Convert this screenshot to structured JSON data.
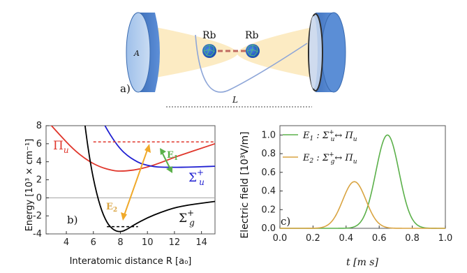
{
  "panel_a": {
    "label": "a)",
    "mirror_label": "A",
    "atom1_label": "Rb",
    "atom2_label": "Rb",
    "length_label": "L",
    "colors": {
      "mirror": "#5b8ed6",
      "mirror_dark": "#3a6bb0",
      "beam": "#fbe8b8",
      "atom": "#2a5fc4",
      "atom_mesh": "#53c07a",
      "bond": "#c06a60",
      "potential": "#8ea6d8"
    }
  },
  "panel_b": {
    "label": "b)",
    "ylabel": "Energy [10³ × cm⁻¹]",
    "xlabel": "Interatomic distance R [a₀]",
    "curve_labels": {
      "pi_u": "Πu",
      "sigma_u": "Σu+",
      "sigma_g": "Σg+",
      "e1": "E₁",
      "e2": "E₂"
    },
    "colors": {
      "pi_u": "#e0362b",
      "sigma_u": "#1f1fd1",
      "sigma_g": "#000000",
      "e1": "#5bb04a",
      "e2": "#f0a92a"
    }
  },
  "panel_c": {
    "label": "c)",
    "ylabel": "Electric field [10³V/m]",
    "xlabel": "t [m s]",
    "legend": [
      {
        "name": "E₁ : Σu+ ↔ Πu",
        "color": "#5bb04a"
      },
      {
        "name": "E₂ : Σg+ ↔ Πu",
        "color": "#d9a441"
      }
    ]
  },
  "chart_data": [
    {
      "type": "line",
      "title": "",
      "xlabel": "Interatomic distance R [a0]",
      "ylabel": "Energy [10^3 x cm^-1]",
      "xlim": [
        2.5,
        15
      ],
      "ylim": [
        -4,
        8
      ],
      "xticks": [
        4,
        6,
        8,
        10,
        12,
        14
      ],
      "yticks": [
        -4,
        -2,
        0,
        2,
        4,
        6,
        8
      ],
      "series": [
        {
          "name": "Πu",
          "x": [
            2.6,
            3.5,
            4.5,
            5.5,
            6.5,
            7.5,
            8.0,
            9.0,
            10.0,
            11.0,
            12.0,
            13.0,
            14.0,
            15.0
          ],
          "y": [
            8.5,
            7.0,
            5.4,
            4.2,
            3.4,
            3.0,
            2.95,
            3.05,
            3.4,
            3.9,
            4.5,
            5.0,
            5.5,
            6.0
          ]
        },
        {
          "name": "Σu+",
          "x": [
            6.5,
            7.0,
            7.5,
            8.0,
            8.5,
            9.0,
            9.5,
            10.0,
            10.5,
            11.0,
            12.0,
            13.0,
            14.0,
            15.0
          ],
          "y": [
            9.0,
            7.6,
            6.4,
            5.4,
            4.7,
            4.2,
            3.8,
            3.6,
            3.45,
            3.4,
            3.38,
            3.4,
            3.45,
            3.5
          ]
        },
        {
          "name": "Σg+",
          "x": [
            5.3,
            5.6,
            6.0,
            6.5,
            7.0,
            7.5,
            8.0,
            8.5,
            9.0,
            10.0,
            11.0,
            12.0,
            13.0,
            14.0,
            15.0
          ],
          "y": [
            9.0,
            5.5,
            2.0,
            -1.0,
            -2.8,
            -3.6,
            -3.8,
            -3.5,
            -3.0,
            -2.2,
            -1.6,
            -1.1,
            -0.8,
            -0.6,
            -0.4
          ]
        },
        {
          "name": "Πu level",
          "x": [
            6.0,
            15.0
          ],
          "y": [
            6.2,
            6.2
          ]
        },
        {
          "name": "Σg+ level",
          "x": [
            7.0,
            9.3
          ],
          "y": [
            -3.2,
            -3.2
          ]
        }
      ]
    },
    {
      "type": "line",
      "title": "",
      "xlabel": "t [m s]",
      "ylabel": "Electric field [10^3V/m]",
      "xlim": [
        0.0,
        1.0
      ],
      "ylim": [
        0.0,
        1.1
      ],
      "xticks": [
        0.0,
        0.2,
        0.4,
        0.6,
        0.8,
        1.0
      ],
      "yticks": [
        0.0,
        0.2,
        0.4,
        0.6,
        0.8,
        1.0
      ],
      "series": [
        {
          "name": "E₁ : Σu+ ↔ Πu",
          "peak_t": 0.65,
          "peak": 1.0,
          "width": 0.07
        },
        {
          "name": "E₂ : Σg+ ↔ Πu",
          "peak_t": 0.45,
          "peak": 0.5,
          "width": 0.07
        }
      ]
    }
  ]
}
